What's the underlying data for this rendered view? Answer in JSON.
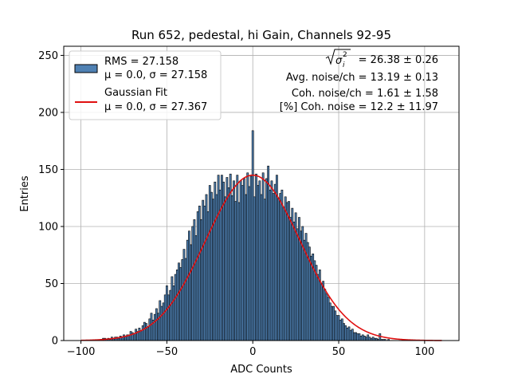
{
  "colors": {
    "bar_fill": "#4f81b3",
    "bar_edge": "#000000",
    "fit_line": "#e01010",
    "grid": "#b0b0b0"
  },
  "chart_data": {
    "type": "bar",
    "title": "Run 652, pedestal, hi Gain, Channels 92-95",
    "xlabel": "ADC Counts",
    "ylabel": "Entries",
    "xlim": [
      -110,
      120
    ],
    "ylim": [
      0,
      258
    ],
    "xticks": [
      -100,
      -50,
      0,
      50,
      100
    ],
    "yticks": [
      0,
      50,
      100,
      150,
      200,
      250
    ],
    "xtick_labels": [
      "−100",
      "−50",
      "0",
      "50",
      "100"
    ],
    "ytick_labels": [
      "0",
      "50",
      "100",
      "150",
      "200",
      "250"
    ],
    "grid": true,
    "histogram": {
      "name": "RMS = 27.158",
      "bin_width": 1,
      "centers": [
        -100,
        -99,
        -98,
        -97,
        -96,
        -95,
        -94,
        -93,
        -92,
        -91,
        -90,
        -89,
        -88,
        -87,
        -86,
        -85,
        -84,
        -83,
        -82,
        -81,
        -80,
        -79,
        -78,
        -77,
        -76,
        -75,
        -74,
        -73,
        -72,
        -71,
        -70,
        -69,
        -68,
        -67,
        -66,
        -65,
        -64,
        -63,
        -62,
        -61,
        -60,
        -59,
        -58,
        -57,
        -56,
        -55,
        -54,
        -53,
        -52,
        -51,
        -50,
        -49,
        -48,
        -47,
        -46,
        -45,
        -44,
        -43,
        -42,
        -41,
        -40,
        -39,
        -38,
        -37,
        -36,
        -35,
        -34,
        -33,
        -32,
        -31,
        -30,
        -29,
        -28,
        -27,
        -26,
        -25,
        -24,
        -23,
        -22,
        -21,
        -20,
        -19,
        -18,
        -17,
        -16,
        -15,
        -14,
        -13,
        -12,
        -11,
        -10,
        -9,
        -8,
        -7,
        -6,
        -5,
        -4,
        -3,
        -2,
        -1,
        0,
        1,
        2,
        3,
        4,
        5,
        6,
        7,
        8,
        9,
        10,
        11,
        12,
        13,
        14,
        15,
        16,
        17,
        18,
        19,
        20,
        21,
        22,
        23,
        24,
        25,
        26,
        27,
        28,
        29,
        30,
        31,
        32,
        33,
        34,
        35,
        36,
        37,
        38,
        39,
        40,
        41,
        42,
        43,
        44,
        45,
        46,
        47,
        48,
        49,
        50,
        51,
        52,
        53,
        54,
        55,
        56,
        57,
        58,
        59,
        60,
        61,
        62,
        63,
        64,
        65,
        66,
        67,
        68,
        69,
        70,
        71,
        72,
        73,
        74,
        75,
        76,
        77,
        78,
        79,
        80,
        81,
        82,
        83,
        84,
        85,
        86,
        87,
        88,
        89,
        90,
        91,
        92,
        93,
        94,
        95,
        96,
        97,
        98,
        99,
        100,
        101,
        102,
        103,
        104,
        105,
        106,
        107,
        108,
        109,
        110
      ],
      "values": [
        0,
        0,
        0,
        0,
        0,
        0,
        0,
        0,
        0,
        0,
        0,
        0,
        1,
        2,
        2,
        1,
        2,
        1,
        3,
        2,
        3,
        3,
        2,
        4,
        3,
        5,
        4,
        5,
        5,
        8,
        7,
        6,
        10,
        8,
        11,
        9,
        13,
        16,
        15,
        12,
        19,
        24,
        18,
        23,
        28,
        24,
        35,
        30,
        33,
        40,
        48,
        40,
        44,
        56,
        48,
        58,
        62,
        68,
        64,
        71,
        80,
        72,
        88,
        96,
        84,
        100,
        106,
        92,
        113,
        118,
        106,
        123,
        118,
        128,
        113,
        136,
        130,
        124,
        139,
        128,
        145,
        132,
        145,
        139,
        126,
        143,
        134,
        146,
        127,
        140,
        122,
        145,
        121,
        140,
        136,
        142,
        128,
        147,
        135,
        144,
        184,
        126,
        146,
        136,
        140,
        128,
        147,
        124,
        142,
        153,
        132,
        140,
        129,
        137,
        145,
        125,
        129,
        132,
        117,
        126,
        121,
        122,
        108,
        116,
        104,
        112,
        98,
        108,
        96,
        100,
        88,
        94,
        86,
        82,
        74,
        76,
        70,
        66,
        58,
        62,
        50,
        52,
        45,
        41,
        38,
        33,
        30,
        30,
        26,
        22,
        22,
        18,
        19,
        15,
        13,
        11,
        12,
        9,
        10,
        7,
        7,
        6,
        6,
        4,
        5,
        4,
        3,
        5,
        3,
        2,
        3,
        2,
        2,
        1,
        6,
        1,
        1,
        1,
        0,
        1,
        0,
        0,
        0,
        0,
        0,
        0,
        0,
        0,
        0,
        0,
        0,
        0,
        0,
        0,
        0,
        0,
        0,
        0,
        0,
        0,
        0,
        0,
        0,
        0,
        0,
        0,
        0
      ]
    },
    "fit": {
      "name": "Gaussian Fit",
      "type": "gaussian",
      "mu": 0.0,
      "sigma": 27.367,
      "amplitude": 145,
      "x_range": [
        -100,
        110
      ]
    }
  },
  "legend": {
    "hist_label": "RMS = 27.158",
    "hist_sub": "μ = 0.0, σ = 27.158",
    "fit_label": "Gaussian Fit",
    "fit_sub": "μ = 0.0, σ = 27.367"
  },
  "annotations": {
    "sigma_sq_value": "= 26.38 ± 0.26",
    "avg_noise": "Avg. noise/ch = 13.19 ± 0.13",
    "coh_noise": "Coh. noise/ch = 1.61 ± 1.58",
    "coh_noise_pct": "[%] Coh. noise = 12.2 ± 11.97"
  }
}
